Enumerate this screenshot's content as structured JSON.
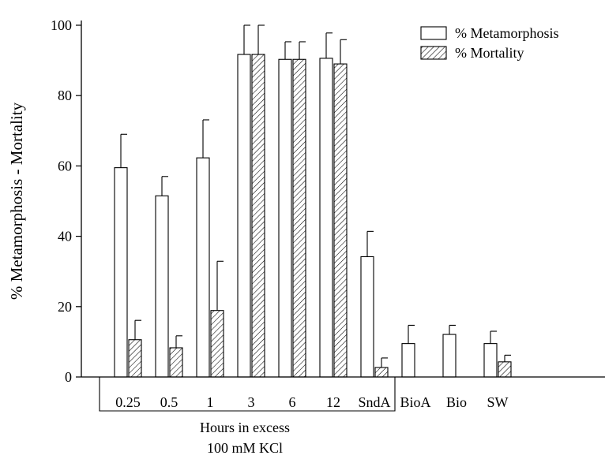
{
  "chart_data": {
    "type": "bar",
    "title": "",
    "ylabel": "% Metamorphosis - Mortality",
    "xlabel_lines": [
      "Hours in excess",
      "100 mM KCl"
    ],
    "categories": [
      "0.25",
      "0.5",
      "1",
      "3",
      "6",
      "12",
      "SndA",
      "BioA",
      "Bio",
      "SW"
    ],
    "ylim": [
      0,
      100
    ],
    "yticks": [
      0,
      20,
      40,
      60,
      80,
      100
    ],
    "legend_position": "top-right",
    "series": [
      {
        "name": "% Metamorphosis",
        "fill": "open",
        "values": [
          59.5,
          51.5,
          62.3,
          91.7,
          90.3,
          90.6,
          34.2,
          9.5,
          12.1,
          9.5
        ],
        "errors": [
          9.5,
          5.5,
          10.8,
          8.3,
          5.0,
          7.2,
          7.2,
          5.2,
          2.6,
          3.5
        ]
      },
      {
        "name": "% Mortality",
        "fill": "hatched",
        "values": [
          10.6,
          8.3,
          18.9,
          91.7,
          90.3,
          89.0,
          2.7,
          null,
          null,
          4.3
        ],
        "errors": [
          5.5,
          3.4,
          14.0,
          8.3,
          5.0,
          6.9,
          2.7,
          null,
          null,
          1.9
        ]
      }
    ]
  }
}
